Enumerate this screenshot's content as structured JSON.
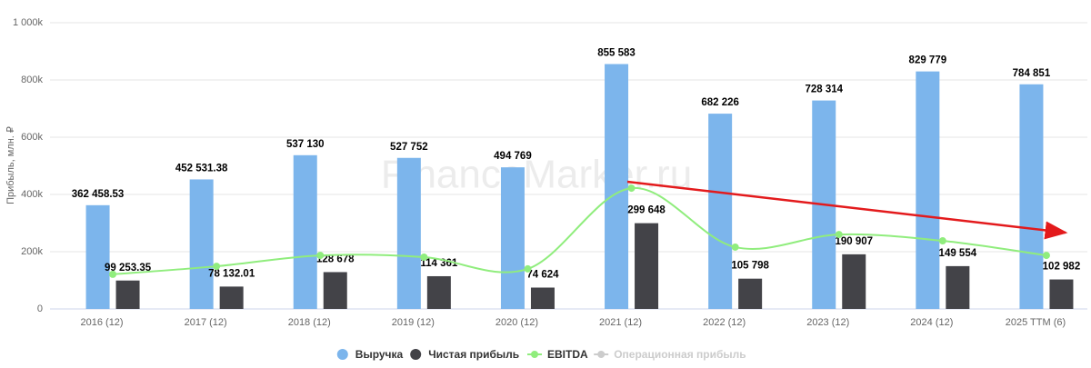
{
  "chart_data": {
    "type": "bar_line",
    "watermark": "FinanceMarker.ru",
    "y_label": "Прибыль, млн. ₽",
    "categories": [
      "2016 (12)",
      "2017 (12)",
      "2018 (12)",
      "2019 (12)",
      "2020 (12)",
      "2021 (12)",
      "2022 (12)",
      "2023 (12)",
      "2024 (12)",
      "2025 TTM (6)"
    ],
    "series": [
      {
        "name": "Выручка",
        "type": "bar",
        "color": "#7cb5ec",
        "values": [
          362458.53,
          452531.38,
          537130,
          527752,
          494769,
          855583,
          682226,
          728314,
          829779,
          784851
        ],
        "value_labels": [
          "362 458.53",
          "452 531.38",
          "537 130",
          "527 752",
          "494 769",
          "855 583",
          "682 226",
          "728 314",
          "829 779",
          "784 851"
        ]
      },
      {
        "name": "Чистая прибыль",
        "type": "bar",
        "color": "#434348",
        "values": [
          99253.35,
          78132.01,
          128678,
          114361,
          74624,
          299648,
          105798,
          190907,
          149554,
          102982
        ],
        "value_labels": [
          "99 253.35",
          "78 132.01",
          "128 678",
          "114 361",
          "74 624",
          "299 648",
          "105 798",
          "190 907",
          "149 554",
          "102 982"
        ]
      },
      {
        "name": "EBITDA",
        "type": "line",
        "color": "#90ed7d",
        "values": [
          121000,
          149000,
          187000,
          181000,
          140000,
          422000,
          216000,
          260000,
          238000,
          187000
        ]
      },
      {
        "name": "Операционная прибыль",
        "type": "line",
        "color": "#cccccc",
        "visible": false,
        "values": [
          null,
          null,
          null,
          null,
          null,
          null,
          null,
          null,
          null,
          null
        ]
      }
    ],
    "ylim": [
      0,
      1000000
    ],
    "yticks": [
      0,
      {
        "value": 200000,
        "label": "200k"
      },
      {
        "value": 400000,
        "label": "400k"
      },
      {
        "value": 600000,
        "label": "600k"
      },
      {
        "value": 800000,
        "label": "800k"
      },
      {
        "value": 1000000,
        "label": "1 000k"
      }
    ],
    "grid": true
  }
}
